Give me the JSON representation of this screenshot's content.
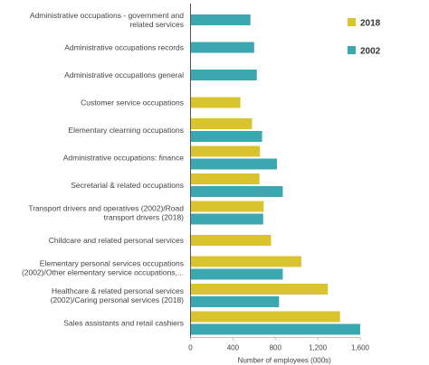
{
  "chart_data": {
    "type": "bar",
    "orientation": "horizontal",
    "title": "",
    "xlabel": "Number of employees (000s)",
    "ylabel": "",
    "xlim": [
      0,
      1600
    ],
    "xticks": [
      0,
      400,
      800,
      1200,
      1600
    ],
    "xtick_labels": [
      "0",
      "400",
      "800",
      "1,200",
      "1,600"
    ],
    "grid": false,
    "legend_position": "top-right",
    "categories": [
      "Administrative occupations - government and related services",
      "Administrative occupations  records",
      "Administrative occupations general",
      "Customer service occupations",
      "Elementary clearning occupations",
      "Administrative occupations: finance",
      "Secretarial & related occupations",
      "Transport drivers and operatives (2002)/Road transport drivers (2018)",
      "Childcare and related personal services",
      "Elementary personal services occupations (2002)/Other elementary service occupations,...",
      "Healthcare & related personal services (2002)/Caring personal services (2018)",
      "Sales assistants and retail cashiers"
    ],
    "category_display_lines": [
      [
        "Administrative occupations - government and",
        "related services"
      ],
      [
        "Administrative occupations  records"
      ],
      [
        "Administrative occupations general"
      ],
      [
        "Customer service occupations"
      ],
      [
        "Elementary clearning occupations"
      ],
      [
        "Administrative occupations: finance"
      ],
      [
        "Secretarial & related occupations"
      ],
      [
        "Transport drivers and operatives (2002)/Road",
        "transport drivers (2018)"
      ],
      [
        "Childcare and related personal services"
      ],
      [
        "Elementary personal services occupations",
        "(2002)/Other elementary service occupations,..."
      ],
      [
        "Healthcare & related personal services",
        "(2002)/Caring personal services (2018)"
      ],
      [
        "Sales assistants and retail cashiers"
      ]
    ],
    "series": [
      {
        "name": "2018",
        "color": "#d9c32e",
        "values": [
          null,
          null,
          null,
          470,
          580,
          655,
          650,
          690,
          760,
          1045,
          1295,
          1410
        ]
      },
      {
        "name": "2002",
        "color": "#3ba8b0",
        "values": [
          565,
          600,
          625,
          null,
          675,
          815,
          870,
          685,
          null,
          870,
          835,
          1600
        ]
      }
    ]
  }
}
